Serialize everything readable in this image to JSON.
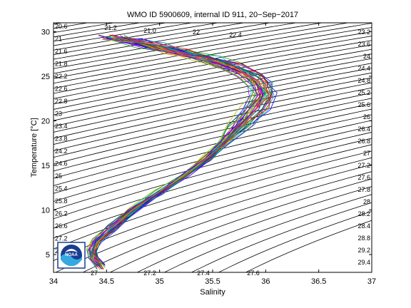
{
  "chart_data": {
    "type": "line",
    "title": "WMO ID 5900609, internal ID 911, 20−Sep−2017",
    "xlabel": "Salinity",
    "ylabel": "Temperature [°C]",
    "xlim": [
      34,
      37
    ],
    "ylim": [
      3,
      31
    ],
    "x_ticks": [
      34,
      34.5,
      35,
      35.5,
      36,
      36.5,
      37
    ],
    "x_tick_labels": [
      "34",
      "34.5",
      "35",
      "35.5",
      "36",
      "36.5",
      "37"
    ],
    "y_ticks": [
      5,
      10,
      15,
      20,
      25,
      30
    ],
    "y_tick_labels": [
      "5",
      "10",
      "15",
      "20",
      "25",
      "30"
    ],
    "grid": false,
    "logo_text": "NOAA",
    "density_contours": {
      "values": [
        20.6,
        21,
        21.2,
        21.6,
        21.8,
        22,
        22.2,
        22.4,
        22.6,
        22.8,
        23,
        23.2,
        23.4,
        23.6,
        23.8,
        24,
        24.2,
        24.4,
        24.6,
        24.8,
        25,
        25.2,
        25.4,
        25.6,
        25.8,
        26,
        26.2,
        26.4,
        26.6,
        26.8,
        27,
        27.2,
        27.4,
        27.6,
        27.8,
        28
      ],
      "labels_left": [
        "20.6",
        "21",
        "21.6",
        "21.8",
        "22.2",
        "22.6",
        "22.8",
        "23",
        "23.4",
        "23.8",
        "24.2",
        "24.6",
        "25",
        "25.4",
        "25.8",
        "26.2",
        "26.6",
        "27.2",
        "27.6"
      ],
      "labels_right": [
        "23.2",
        "23.6",
        "24",
        "24.4",
        "24.8",
        "25.2",
        "25.6",
        "26",
        "26.4",
        "26.8",
        "27",
        "27.2",
        "27.6",
        "27.8",
        "28",
        "28.2",
        "28.4",
        "28.8",
        "29.2",
        "29.4"
      ],
      "labels_top": [
        "21.2",
        "21.0",
        "22",
        "22.4"
      ],
      "labels_bottom": [
        "27",
        "27.2",
        "27.4",
        "27.6"
      ]
    },
    "profile_count": 40,
    "profile_colors": [
      "#0000ff",
      "#00aa00",
      "#ff0000",
      "#00bfbf",
      "#bf00bf",
      "#bfbf00",
      "#333333",
      "#ff7f00",
      "#7f00ff",
      "#007f7f"
    ],
    "mean_profile": {
      "salinity": [
        34.45,
        34.38,
        34.36,
        34.4,
        34.55,
        34.75,
        35.0,
        35.25,
        35.45,
        35.6,
        35.75,
        35.9,
        35.98,
        35.95,
        35.85,
        35.65,
        35.45,
        35.15,
        34.9,
        34.7,
        34.55
      ],
      "temperature": [
        3.6,
        4.5,
        5.5,
        6.5,
        8.0,
        10.0,
        12.0,
        14.0,
        15.8,
        17.5,
        19.5,
        21.5,
        23.0,
        24.2,
        25.2,
        26.2,
        27.0,
        27.8,
        28.5,
        29.0,
        29.4
      ]
    }
  }
}
